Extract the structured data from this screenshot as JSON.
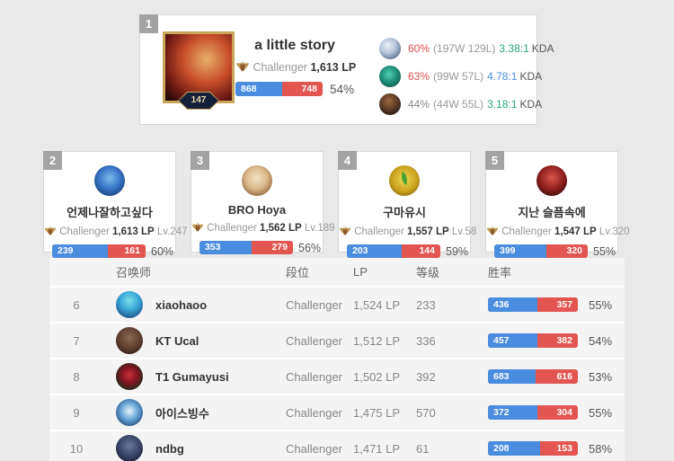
{
  "colors": {
    "win_blue": "#4a8cdd",
    "loss_red": "#e25550",
    "rate_red": "#e0514d",
    "kda_green": "#2aa77a",
    "kda_blue": "#478fdd",
    "rank_badge_gray": "#a3a3a3",
    "gold_frame": "#c9a55a",
    "page_bg": "#e9e9e9"
  },
  "icons": {
    "challenger_crest": "challenger-crest-icon"
  },
  "top_card": {
    "rank": "1",
    "name": "a little story",
    "tier": "Challenger",
    "lp": "1,613 LP",
    "avatar_level": "147",
    "wins": "868",
    "losses": "748",
    "win_width": 53.7,
    "rate": "54%",
    "champions": [
      {
        "rate": "60%",
        "rate_class": "c-red",
        "record": "(197W 129L)",
        "kda": "3.38:1",
        "kda_class": "c-green",
        "kda_label": "KDA"
      },
      {
        "rate": "63%",
        "rate_class": "c-red",
        "record": "(99W 57L)",
        "kda": "4.78:1",
        "kda_class": "c-blue",
        "kda_label": "KDA"
      },
      {
        "rate": "44%",
        "rate_class": "c-gray",
        "record": "(44W 55L)",
        "kda": "3.18:1",
        "kda_class": "c-green",
        "kda_label": "KDA"
      }
    ]
  },
  "cards": [
    {
      "rank": "2",
      "name": "언제나잘하고싶다",
      "tier": "Challenger",
      "lp": "1,613 LP",
      "level": "Lv.247",
      "wins": "239",
      "losses": "161",
      "win_width": 59.8,
      "rate": "60%"
    },
    {
      "rank": "3",
      "name": "BRO Hoya",
      "tier": "Challenger",
      "lp": "1,562 LP",
      "level": "Lv.189",
      "wins": "353",
      "losses": "279",
      "win_width": 55.9,
      "rate": "56%"
    },
    {
      "rank": "4",
      "name": "구마유시",
      "tier": "Challenger",
      "lp": "1,557 LP",
      "level": "Lv.58",
      "wins": "203",
      "losses": "144",
      "win_width": 58.5,
      "rate": "59%"
    },
    {
      "rank": "5",
      "name": "지난 슬픔속에",
      "tier": "Challenger",
      "lp": "1,547 LP",
      "level": "Lv.320",
      "wins": "399",
      "losses": "320",
      "win_width": 55.5,
      "rate": "55%"
    }
  ],
  "table": {
    "headers": {
      "summoner": "召唤师",
      "tier": "段位",
      "lp": "LP",
      "level": "等级",
      "win_rate": "胜率"
    },
    "rows": [
      {
        "rank": "6",
        "name": "xiaohaoo",
        "tier": "Challenger",
        "lp": "1,524 LP",
        "level": "233",
        "wins": "436",
        "losses": "357",
        "win_width": 55.0,
        "rate": "55%"
      },
      {
        "rank": "7",
        "name": "KT Ucal",
        "tier": "Challenger",
        "lp": "1,512 LP",
        "level": "336",
        "wins": "457",
        "losses": "382",
        "win_width": 54.5,
        "rate": "54%"
      },
      {
        "rank": "8",
        "name": "T1 Gumayusi",
        "tier": "Challenger",
        "lp": "1,502 LP",
        "level": "392",
        "wins": "683",
        "losses": "616",
        "win_width": 52.6,
        "rate": "53%"
      },
      {
        "rank": "9",
        "name": "아이스빙수",
        "tier": "Challenger",
        "lp": "1,475 LP",
        "level": "570",
        "wins": "372",
        "losses": "304",
        "win_width": 55.0,
        "rate": "55%"
      },
      {
        "rank": "10",
        "name": "ndbg",
        "tier": "Challenger",
        "lp": "1,471 LP",
        "level": "61",
        "wins": "208",
        "losses": "153",
        "win_width": 57.6,
        "rate": "58%"
      }
    ]
  }
}
